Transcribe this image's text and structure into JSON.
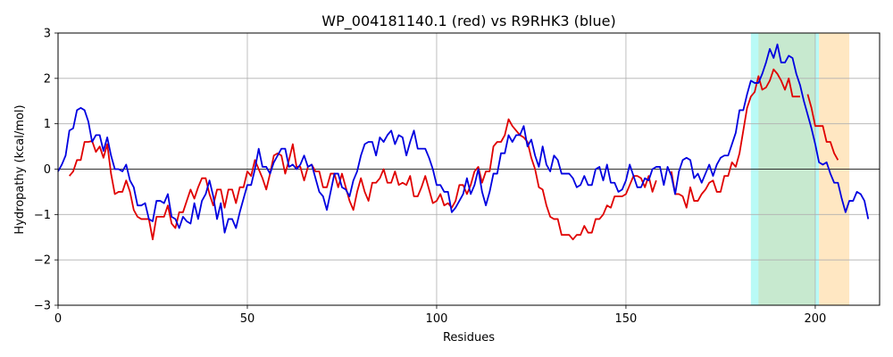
{
  "chart_data": {
    "type": "line",
    "title": "WP_004181140.1 (red) vs R9RHK3 (blue)",
    "xlabel": "Residues",
    "ylabel": "Hydropathy (kcal/mol)",
    "xlim": [
      0,
      217
    ],
    "ylim": [
      -3,
      3
    ],
    "xticks": [
      0,
      50,
      100,
      150,
      200
    ],
    "yticks": [
      -3,
      -2,
      -1,
      0,
      1,
      2,
      3
    ],
    "grid": true,
    "zero_line": true,
    "highlight_regions": [
      {
        "x0": 183,
        "x1": 201,
        "color": "#7ff5ee",
        "opacity": 0.55
      },
      {
        "x0": 201,
        "x1": 209,
        "color": "#ffd79a",
        "opacity": 0.6
      },
      {
        "x0": 185,
        "x1": 200,
        "color": "#c7e9cf",
        "opacity": 1.0
      }
    ],
    "series": [
      {
        "color": "#e00000",
        "x_start": 3,
        "values": [
          -0.15,
          -0.05,
          0.2,
          0.2,
          0.6,
          0.6,
          0.62,
          0.38,
          0.5,
          0.25,
          0.55,
          -0.1,
          -0.55,
          -0.5,
          -0.5,
          -0.25,
          -0.5,
          -0.9,
          -1.05,
          -1.1,
          -1.1,
          -1.1,
          -1.55,
          -1.05,
          -1.05,
          -1.05,
          -0.8,
          -1.2,
          -1.3,
          -0.95,
          -0.95,
          -0.7,
          -0.45,
          -0.65,
          -0.4,
          -0.2,
          -0.2,
          -0.55,
          -0.8,
          -0.45,
          -0.45,
          -0.85,
          -0.45,
          -0.45,
          -0.75,
          -0.4,
          -0.4,
          -0.05,
          -0.15,
          0.2,
          0.0,
          -0.2,
          -0.45,
          -0.1,
          0.3,
          0.35,
          0.3,
          -0.1,
          0.2,
          0.55,
          0.05,
          0.05,
          -0.25,
          0.05,
          0.1,
          -0.05,
          -0.05,
          -0.4,
          -0.4,
          -0.1,
          -0.1,
          -0.4,
          -0.1,
          -0.4,
          -0.7,
          -0.9,
          -0.5,
          -0.2,
          -0.5,
          -0.7,
          -0.3,
          -0.3,
          -0.2,
          0.0,
          -0.3,
          -0.3,
          -0.05,
          -0.35,
          -0.3,
          -0.35,
          -0.15,
          -0.6,
          -0.6,
          -0.4,
          -0.15,
          -0.45,
          -0.75,
          -0.7,
          -0.55,
          -0.8,
          -0.75,
          -0.85,
          -0.7,
          -0.35,
          -0.35,
          -0.55,
          -0.35,
          -0.05,
          0.05,
          -0.3,
          -0.05,
          -0.05,
          0.5,
          0.6,
          0.6,
          0.75,
          1.1,
          0.95,
          0.85,
          0.75,
          0.7,
          0.6,
          0.25,
          0.0,
          -0.4,
          -0.45,
          -0.8,
          -1.05,
          -1.1,
          -1.1,
          -1.45,
          -1.45,
          -1.45,
          -1.55,
          -1.45,
          -1.45,
          -1.25,
          -1.4,
          -1.4,
          -1.1,
          -1.1,
          -1.0,
          -0.8,
          -0.85,
          -0.6,
          -0.6,
          -0.6,
          -0.55,
          -0.35,
          -0.15,
          -0.15,
          -0.2,
          -0.4,
          -0.15,
          -0.5,
          -0.25,
          null,
          null,
          null,
          -0.05,
          -0.55,
          -0.55,
          -0.6,
          -0.85,
          -0.4,
          -0.7,
          -0.7,
          -0.55,
          -0.45,
          -0.3,
          -0.25,
          -0.5,
          -0.5,
          -0.15,
          -0.15,
          0.15,
          0.05,
          0.35,
          0.85,
          1.35,
          1.6,
          1.7,
          2.05,
          1.75,
          1.8,
          1.95,
          2.2,
          2.1,
          1.95,
          1.75,
          2.0,
          1.6,
          1.6,
          1.6,
          null,
          1.65,
          1.35,
          0.95,
          0.95,
          0.95,
          0.6,
          0.6,
          0.35,
          0.2
        ]
      },
      {
        "color": "#0000e0",
        "x_start": 0,
        "values": [
          -0.05,
          0.1,
          0.3,
          0.85,
          0.9,
          1.3,
          1.35,
          1.3,
          1.05,
          0.6,
          0.75,
          0.75,
          0.4,
          0.7,
          0.3,
          0.0,
          0.0,
          -0.05,
          0.1,
          -0.25,
          -0.4,
          -0.8,
          -0.8,
          -0.75,
          -1.1,
          -1.15,
          -0.7,
          -0.7,
          -0.75,
          -0.55,
          -1.05,
          -1.1,
          -1.3,
          -1.05,
          -1.15,
          -1.2,
          -0.75,
          -1.1,
          -0.7,
          -0.55,
          -0.25,
          -0.6,
          -1.1,
          -0.75,
          -1.4,
          -1.1,
          -1.1,
          -1.3,
          -0.95,
          -0.65,
          -0.35,
          -0.35,
          0.0,
          0.45,
          0.05,
          0.05,
          -0.1,
          0.15,
          0.3,
          0.45,
          0.45,
          0.05,
          0.1,
          0.0,
          0.1,
          0.3,
          0.05,
          0.1,
          -0.2,
          -0.5,
          -0.6,
          -0.9,
          -0.5,
          -0.1,
          -0.1,
          -0.4,
          -0.45,
          -0.6,
          -0.25,
          -0.05,
          0.3,
          0.55,
          0.6,
          0.6,
          0.3,
          0.7,
          0.6,
          0.75,
          0.85,
          0.55,
          0.75,
          0.7,
          0.3,
          0.6,
          0.85,
          0.45,
          0.45,
          0.45,
          0.25,
          0.0,
          -0.35,
          -0.35,
          -0.5,
          -0.5,
          -0.95,
          -0.85,
          -0.7,
          -0.55,
          -0.2,
          -0.55,
          -0.35,
          0.0,
          -0.5,
          -0.8,
          -0.5,
          -0.1,
          -0.1,
          0.35,
          0.35,
          0.75,
          0.6,
          0.75,
          0.75,
          0.95,
          0.5,
          0.65,
          0.3,
          0.05,
          0.5,
          0.1,
          -0.05,
          0.3,
          0.2,
          -0.1,
          -0.1,
          -0.1,
          -0.2,
          -0.4,
          -0.35,
          -0.15,
          -0.35,
          -0.35,
          0.0,
          0.05,
          -0.25,
          0.1,
          -0.3,
          -0.3,
          -0.5,
          -0.45,
          -0.25,
          0.1,
          -0.15,
          -0.4,
          -0.4,
          -0.2,
          -0.25,
          0.0,
          0.05,
          0.05,
          -0.35,
          0.05,
          -0.15,
          -0.55,
          -0.05,
          0.2,
          0.25,
          0.2,
          -0.2,
          -0.1,
          -0.3,
          -0.1,
          0.1,
          -0.15,
          0.1,
          0.25,
          0.3,
          0.3,
          0.55,
          0.8,
          1.3,
          1.3,
          1.65,
          1.95,
          1.9,
          1.9,
          2.1,
          2.35,
          2.65,
          2.45,
          2.75,
          2.35,
          2.35,
          2.5,
          2.45,
          2.1,
          1.85,
          1.5,
          1.2,
          0.9,
          0.55,
          0.15,
          0.1,
          0.15,
          -0.1,
          -0.3,
          -0.3,
          -0.65,
          -0.95,
          -0.7,
          -0.7,
          -0.5,
          -0.55,
          -0.7,
          -1.1
        ]
      }
    ]
  }
}
